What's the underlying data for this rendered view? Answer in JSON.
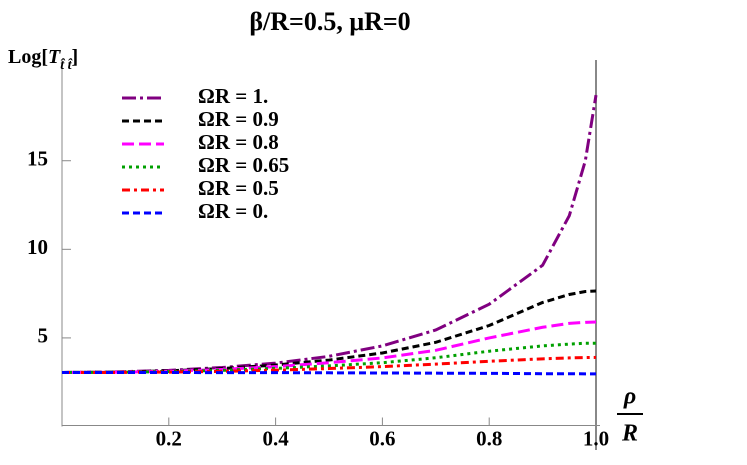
{
  "chart_data": {
    "type": "line",
    "title": "β/R=0.5, μR=0",
    "y_label": [
      "Log[",
      "T",
      "t̂ t̂",
      "]"
    ],
    "x_label": [
      "ρ",
      "R"
    ],
    "x": [
      0,
      0.1,
      0.2,
      0.3,
      0.4,
      0.5,
      0.6,
      0.7,
      0.8,
      0.9,
      0.95,
      0.98,
      1.0
    ],
    "series": [
      {
        "name": "ΩR = 1.",
        "color": "#800080",
        "style": "longdashdot",
        "values": [
          3.05,
          3.08,
          3.17,
          3.33,
          3.58,
          3.96,
          4.55,
          5.45,
          6.9,
          9.1,
          11.9,
          15.0,
          18.7
        ]
      },
      {
        "name": "ΩR = 0.9",
        "color": "#000000",
        "style": "dashed",
        "values": [
          3.05,
          3.07,
          3.14,
          3.27,
          3.47,
          3.75,
          4.15,
          4.75,
          5.7,
          7.0,
          7.45,
          7.62,
          7.65
        ]
      },
      {
        "name": "ΩR = 0.8",
        "color": "#ff00ff",
        "style": "longdash",
        "values": [
          3.05,
          3.06,
          3.12,
          3.22,
          3.38,
          3.6,
          3.87,
          4.3,
          5.0,
          5.6,
          5.82,
          5.88,
          5.9
        ]
      },
      {
        "name": "ΩR = 0.65",
        "color": "#00a000",
        "style": "dotted",
        "values": [
          3.05,
          3.06,
          3.1,
          3.17,
          3.28,
          3.42,
          3.6,
          3.88,
          4.25,
          4.55,
          4.65,
          4.7,
          4.7
        ]
      },
      {
        "name": "ΩR = 0.5",
        "color": "#ff0000",
        "style": "dashdot",
        "values": [
          3.05,
          3.05,
          3.07,
          3.11,
          3.18,
          3.27,
          3.38,
          3.52,
          3.68,
          3.82,
          3.87,
          3.89,
          3.9
        ]
      },
      {
        "name": "ΩR = 0.",
        "color": "#0000ff",
        "style": "dashed",
        "values": [
          3.05,
          3.05,
          3.05,
          3.04,
          3.04,
          3.03,
          3.02,
          3.01,
          3.0,
          2.98,
          2.98,
          2.97,
          2.97
        ]
      }
    ],
    "xlim": [
      0,
      1.0
    ],
    "ylim": [
      0,
      19.5
    ],
    "xticks": [
      0.2,
      0.4,
      0.6,
      0.8,
      {
        "value": 1.0,
        "label": "1.0"
      }
    ],
    "yticks": [
      5,
      10,
      15
    ],
    "grid": false,
    "legend": "top-left"
  }
}
